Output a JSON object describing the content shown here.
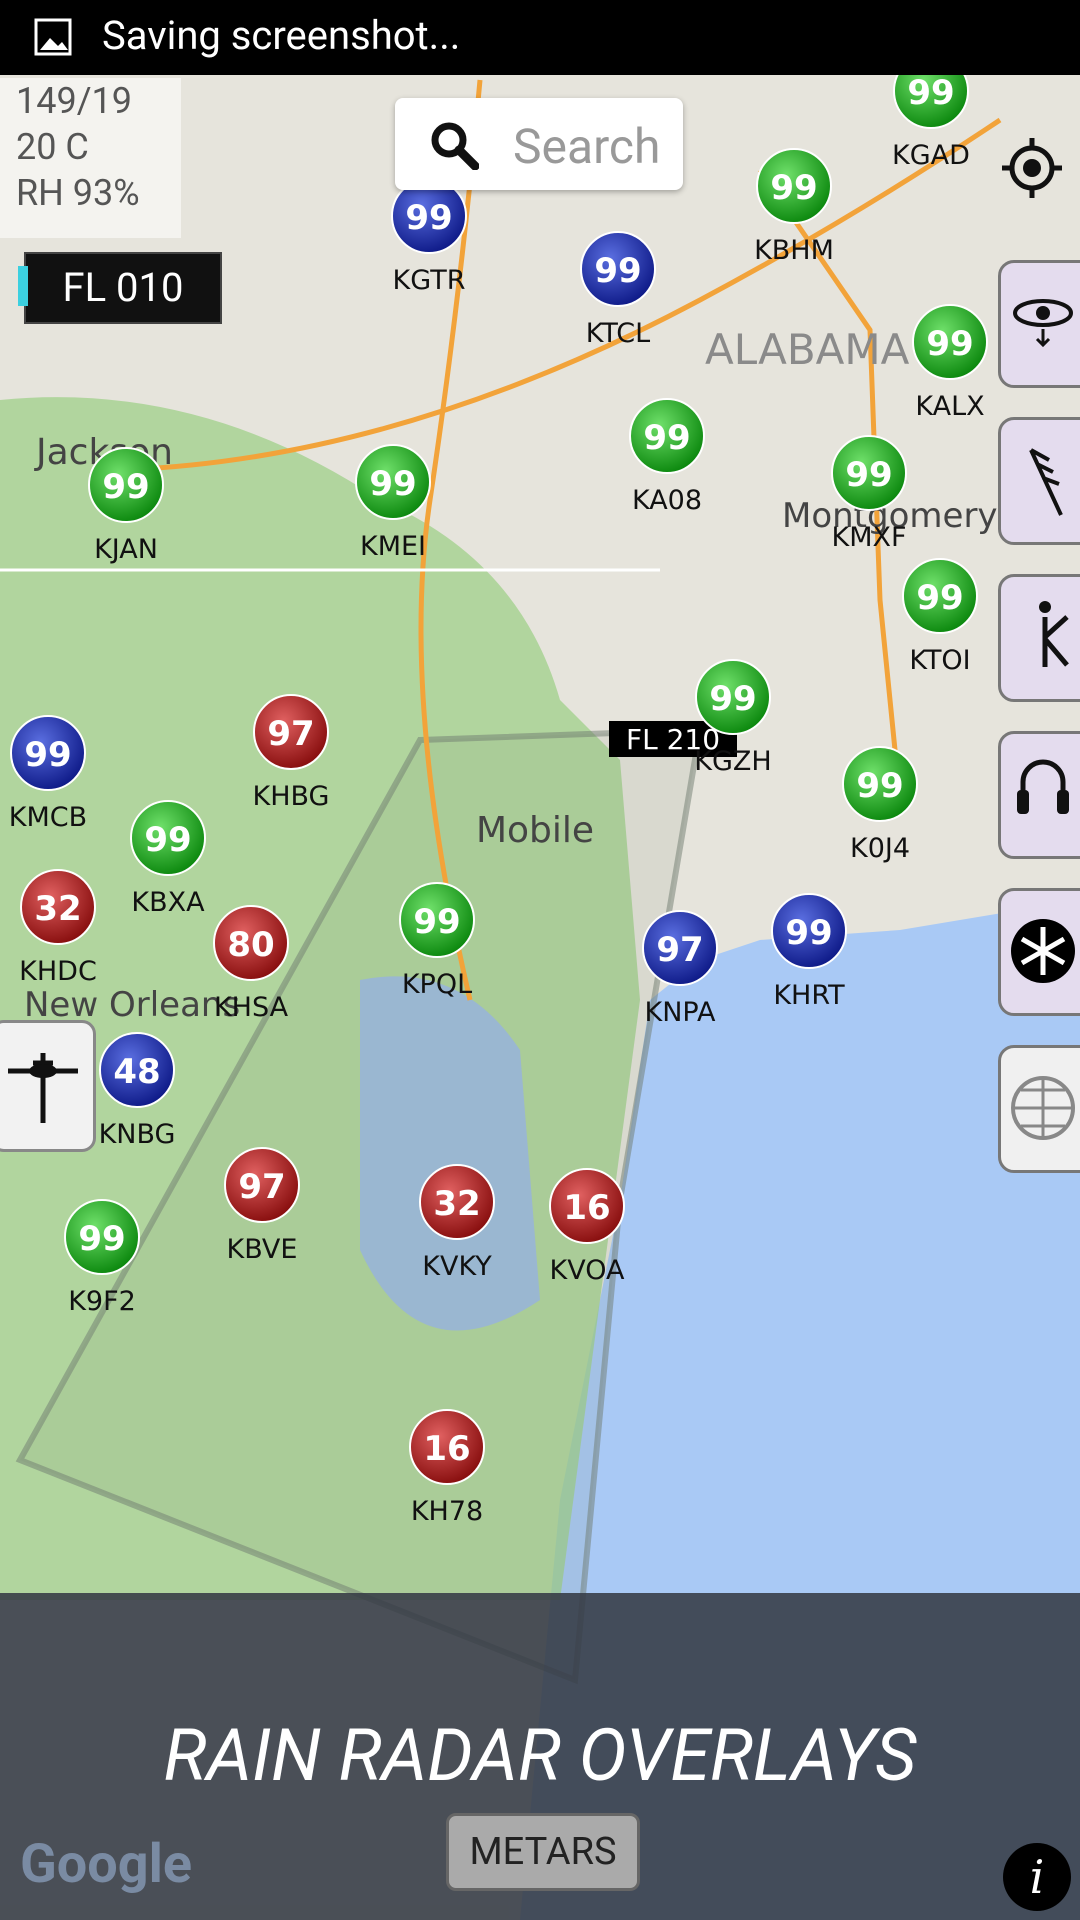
{
  "status_bar": {
    "text": "Saving screenshot..."
  },
  "search": {
    "placeholder": "Search"
  },
  "weather": {
    "lines": [
      "149/19",
      "20 C",
      "RH 93%"
    ]
  },
  "altitude": "FL 010",
  "flight_labels": [
    "FL 210"
  ],
  "places": [
    "Jackson",
    "Mobile",
    "New Orleans",
    "ALABAMA",
    "Montgomery"
  ],
  "stations": [
    {
      "id": "KGTR",
      "value": "99"
    },
    {
      "id": "KTCL",
      "value": "99"
    },
    {
      "id": "KBHM",
      "value": "99"
    },
    {
      "id": "KGAD",
      "value": "99"
    },
    {
      "id": "KALX",
      "value": "99"
    },
    {
      "id": "KA08",
      "value": "99"
    },
    {
      "id": "KMXF",
      "value": "99"
    },
    {
      "id": "KJAN",
      "value": "99"
    },
    {
      "id": "KMEI",
      "value": "99"
    },
    {
      "id": "KTOI",
      "value": "99"
    },
    {
      "id": "KGZH",
      "value": "99"
    },
    {
      "id": "KHBG",
      "value": "97"
    },
    {
      "id": "KMCB",
      "value": "99"
    },
    {
      "id": "KBXA",
      "value": "99"
    },
    {
      "id": "KHDC",
      "value": "32"
    },
    {
      "id": "KHSA",
      "value": "80"
    },
    {
      "id": "KPQL",
      "value": "99"
    },
    {
      "id": "KNPA",
      "value": "97"
    },
    {
      "id": "KHRT",
      "value": "99"
    },
    {
      "id": "K0J4",
      "value": "99"
    },
    {
      "id": "KNBG",
      "value": "48"
    },
    {
      "id": "KBVE",
      "value": "97"
    },
    {
      "id": "KVKY",
      "value": "32"
    },
    {
      "id": "KVOA",
      "value": "16"
    },
    {
      "id": "K9F2",
      "value": "99"
    },
    {
      "id": "KH78",
      "value": "16"
    }
  ],
  "banner": {
    "title": "RAIN RADAR OVERLAYS"
  },
  "metars_button": "METARS",
  "google_logo": "Google",
  "info_button": "i"
}
